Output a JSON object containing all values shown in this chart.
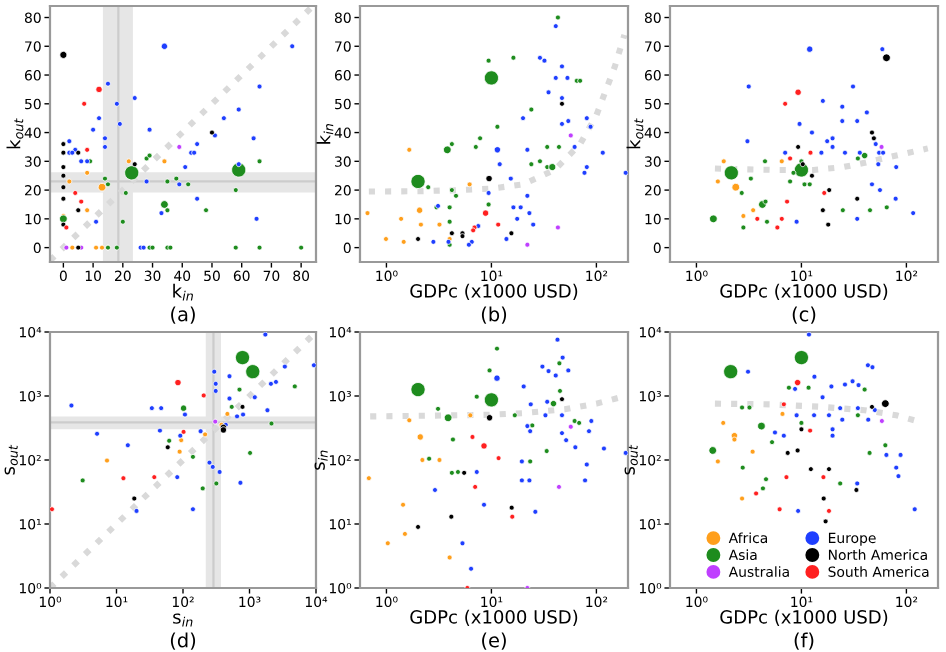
{
  "chart_data": [
    {
      "type": "bubble",
      "title": "(a)",
      "xlabel": "k$_{in}$",
      "ylabel": "k$_{out}$",
      "xlim": [
        -4.5,
        85
      ],
      "ylim": [
        -5,
        84
      ],
      "xticks": [
        0,
        10,
        20,
        30,
        40,
        50,
        60,
        70,
        80
      ],
      "yticks": [
        0,
        10,
        20,
        30,
        40,
        50,
        60,
        70,
        80
      ],
      "bands": [
        {
          "axis": "x",
          "from": 13.3,
          "to": 23.4,
          "color": "#e6e6e6"
        },
        {
          "axis": "y",
          "from": 19.2,
          "to": 26.2,
          "color": "#e6e6e6"
        }
      ],
      "ref_lines": [
        {
          "axis": "x",
          "value": 18.5,
          "color": "#cccccc"
        },
        {
          "axis": "y",
          "value": 23,
          "color": "#cccccc"
        }
      ],
      "series": [
        {
          "type": "line",
          "color": "#d9d9d9",
          "line_style": "dotted",
          "x": [
            -4.5,
            84
          ],
          "values": [
            -4.5,
            84
          ]
        },
        {
          "color": "#ff9f1c",
          "x": [
            0,
            2,
            8,
            8,
            13,
            22,
            34,
            3,
            11,
            13,
            15
          ],
          "values": [
            11,
            23,
            26,
            13,
            21,
            30,
            30,
            0,
            0,
            0,
            0
          ],
          "sizes": [
            0.12,
            0.12,
            0.12,
            0.12,
            0.3,
            0.12,
            0.12,
            0.12,
            0.12,
            0.12,
            0.12
          ]
        },
        {
          "color": "#1e8c1e",
          "x": [
            23,
            59,
            34,
            0,
            28,
            29,
            14,
            15,
            21,
            35,
            38,
            42,
            35,
            20,
            48,
            58,
            66,
            9,
            15,
            18,
            29,
            30,
            35,
            36,
            58,
            66,
            80
          ],
          "values": [
            26,
            27,
            15,
            10,
            31,
            32,
            24,
            22,
            19,
            23,
            24,
            22,
            13,
            9,
            13,
            20,
            30,
            30,
            0,
            0,
            0,
            0,
            0,
            0,
            0,
            0,
            0
          ],
          "sizes": [
            1,
            1,
            0.3,
            0.3,
            0.12,
            0.12,
            0.12,
            0.12,
            0.12,
            0.12,
            0.12,
            0.12,
            0.12,
            0.12,
            0.12,
            0.12,
            0.12,
            0.12,
            0.12,
            0.12,
            0.12,
            0.12,
            0.12,
            0.12,
            0.12,
            0.12,
            0.12
          ]
        },
        {
          "color": "#bf3fff",
          "x": [
            1,
            6,
            39
          ],
          "values": [
            0,
            0,
            35
          ],
          "sizes": [
            0.12,
            0.12,
            0.12
          ]
        },
        {
          "color": "#1f3fff",
          "x": [
            34,
            77,
            15,
            66,
            18,
            24,
            59,
            54,
            12,
            19,
            29,
            51,
            10,
            64,
            14,
            2,
            14,
            45,
            4,
            2,
            3,
            43,
            44,
            6,
            8,
            41,
            59,
            28,
            39,
            45,
            33,
            11,
            65,
            26,
            27
          ],
          "values": [
            70,
            70,
            57,
            56,
            50,
            52,
            48,
            45,
            45,
            43,
            41,
            39,
            41,
            38,
            38,
            37,
            35,
            36,
            34,
            33,
            33,
            33,
            33,
            30,
            30,
            28,
            29,
            23,
            22,
            17,
            12,
            9,
            10,
            0,
            0
          ],
          "sizes": [
            0.2,
            0.12,
            0.12,
            0.12,
            0.12,
            0.12,
            0.12,
            0.12,
            0.12,
            0.12,
            0.12,
            0.12,
            0.12,
            0.12,
            0.12,
            0.12,
            0.12,
            0.12,
            0.12,
            0.12,
            0.12,
            0.12,
            0.12,
            0.12,
            0.12,
            0.12,
            0.12,
            0.12,
            0.12,
            0.12,
            0.12,
            0.12,
            0.12,
            0.12,
            0.12
          ]
        },
        {
          "color": "#000000",
          "x": [
            0,
            0,
            0,
            0,
            0,
            0,
            0,
            0,
            5,
            5,
            24,
            50,
            5
          ],
          "values": [
            67,
            36,
            33,
            28,
            25,
            21,
            17,
            8,
            33,
            13,
            29,
            40,
            0
          ],
          "sizes": [
            0.25,
            0.12,
            0.12,
            0.12,
            0.12,
            0.12,
            0.12,
            0.12,
            0.12,
            0.12,
            0.12,
            0.12,
            0.12
          ]
        },
        {
          "color": "#ff2020",
          "x": [
            12,
            7,
            8,
            4,
            6,
            1
          ],
          "values": [
            55,
            50,
            34,
            19,
            16,
            7
          ],
          "sizes": [
            0.2,
            0.12,
            0.12,
            0.12,
            0.12,
            0.12
          ]
        }
      ]
    },
    {
      "type": "bubble",
      "title": "(b)",
      "xlabel": "GDPc (x1000 USD)",
      "ylabel": "k$_{in}$",
      "log": "x",
      "xlim": [
        0.56,
        200
      ],
      "ylim": [
        -5,
        84
      ],
      "xticks": [
        {
          "value": 1,
          "label": "10⁰"
        },
        {
          "value": 10,
          "label": "10¹"
        },
        {
          "value": 100,
          "label": "10²"
        }
      ],
      "yticks": [
        0,
        10,
        20,
        30,
        40,
        50,
        60,
        70,
        80
      ],
      "series": [
        {
          "type": "line",
          "color": "#d9d9d9",
          "line_style": "dotted",
          "x": [
            0.68,
            2,
            5,
            10,
            20,
            40,
            70,
            100,
            150,
            185
          ],
          "values": [
            19.5,
            19.6,
            20,
            20.5,
            22,
            27,
            36,
            46,
            63,
            74
          ]
        },
        {
          "color": "#ff9f1c",
          "x": [
            0.66,
            0.99,
            1.38,
            1.46,
            1.65,
            2.07,
            2.13,
            3.2,
            4,
            6.2
          ],
          "values": [
            12,
            3,
            10,
            2,
            34,
            13,
            8,
            8,
            3,
            22
          ],
          "sizes": [
            0.12,
            0.12,
            0.12,
            0.12,
            0.12,
            0.2,
            0.12,
            0.12,
            0.12,
            0.12
          ]
        },
        {
          "color": "#1e8c1e",
          "x": [
            2,
            10,
            3.8,
            43,
            9.4,
            16.2,
            65,
            70,
            11.4,
            7.8,
            7.1,
            4.2,
            2.5,
            4.2,
            4.6,
            24,
            34,
            24,
            29,
            34,
            38,
            9.4,
            3,
            4,
            4,
            4,
            44
          ],
          "values": [
            23,
            59,
            34,
            80,
            65,
            66,
            58,
            58,
            42,
            38,
            35,
            36,
            21,
            20,
            18,
            29,
            35,
            48,
            30,
            28,
            28,
            15,
            14,
            14,
            9,
            1,
            35
          ],
          "sizes": [
            1,
            1,
            0.3,
            0.12,
            0.12,
            0.12,
            0.12,
            0.12,
            0.12,
            0.12,
            0.12,
            0.12,
            0.12,
            0.12,
            0.12,
            0.12,
            0.12,
            0.12,
            0.12,
            0.12,
            0.25,
            0.12,
            0.12,
            0.12,
            0.12,
            0.12,
            0.12
          ]
        },
        {
          "color": "#bf3fff",
          "x": [
            57,
            43,
            22
          ],
          "values": [
            39,
            7,
            1
          ],
          "sizes": [
            0.12,
            0.12,
            0.12
          ]
        },
        {
          "color": "#1f3fff",
          "x": [
            41,
            29,
            32,
            47,
            41,
            53,
            47,
            35,
            20,
            47,
            54,
            81,
            88,
            115,
            190,
            81,
            77,
            62,
            11.4,
            22,
            12,
            15.3,
            9.4,
            22,
            16.2,
            19,
            23,
            17.6,
            25,
            3.1,
            7.5,
            6.5,
            6.1,
            3.9,
            2.8,
            13.9
          ],
          "values": [
            77,
            66,
            65,
            63,
            59,
            59,
            52,
            54,
            45,
            43,
            44,
            45,
            42,
            33,
            26,
            28,
            26,
            35,
            34,
            34,
            29,
            24,
            19,
            18,
            14,
            14,
            12,
            10,
            8,
            14.5,
            7.5,
            2,
            1,
            2,
            2,
            3
          ],
          "sizes": [
            0.12,
            0.12,
            0.12,
            0.12,
            0.12,
            0.12,
            0.12,
            0.12,
            0.12,
            0.12,
            0.12,
            0.12,
            0.12,
            0.12,
            0.12,
            0.12,
            0.12,
            0.12,
            0.2,
            0.12,
            0.12,
            0.12,
            0.12,
            0.12,
            0.12,
            0.12,
            0.12,
            0.12,
            0.12,
            0.12,
            0.12,
            0.12,
            0.12,
            0.12,
            0.12,
            0.12
          ]
        },
        {
          "color": "#000000",
          "x": [
            47,
            9.5,
            2,
            4.2,
            5.3,
            5.3,
            15.5
          ],
          "values": [
            50,
            24,
            3,
            5,
            5,
            4,
            5
          ],
          "sizes": [
            0.12,
            0.2,
            0.12,
            0.12,
            0.12,
            0.12,
            0.12
          ]
        },
        {
          "color": "#ff2020",
          "x": [
            8.8,
            6.9,
            6.7,
            11.6
          ],
          "values": [
            12,
            7,
            6,
            8
          ],
          "sizes": [
            0.2,
            0.12,
            0.12,
            0.12
          ]
        }
      ]
    },
    {
      "type": "bubble",
      "title": "(c)",
      "xlabel": "GDPc (x1000 USD)",
      "ylabel": "k$_{out}$",
      "log": "x",
      "xlim": [
        0.56,
        200
      ],
      "ylim": [
        -5,
        84
      ],
      "xticks": [
        {
          "value": 1,
          "label": "10⁰"
        },
        {
          "value": 10,
          "label": "10¹"
        },
        {
          "value": 100,
          "label": "10²"
        }
      ],
      "yticks": [
        0,
        10,
        20,
        30,
        40,
        50,
        60,
        70,
        80
      ],
      "series": [
        {
          "type": "line",
          "color": "#d9d9d9",
          "line_style": "dotted",
          "x": [
            1.5,
            3,
            6,
            13,
            25,
            40,
            80,
            160
          ],
          "values": [
            27.5,
            27.2,
            27,
            27,
            28,
            29.5,
            32,
            34.5
          ]
        },
        {
          "color": "#ff9f1c",
          "x": [
            1.82,
            1.6,
            2.37,
            3.47,
            2.8,
            6.5
          ],
          "values": [
            30,
            23,
            21,
            13,
            11,
            30
          ],
          "sizes": [
            0.12,
            0.12,
            0.3,
            0.12,
            0.12,
            0.12
          ]
        },
        {
          "color": "#1e8c1e",
          "x": [
            2.15,
            10,
            4.25,
            1.45,
            3.3,
            2.7,
            4.55,
            4.5,
            7.8,
            8.4,
            10.7,
            12,
            10,
            24.8,
            34.5,
            40,
            45,
            65,
            2.8,
            4.7
          ],
          "values": [
            26,
            27,
            15,
            10,
            24,
            19,
            16,
            30,
            23,
            26,
            22,
            22,
            30,
            13,
            31,
            32,
            13,
            14,
            7,
            9
          ],
          "sizes": [
            1,
            1,
            0.3,
            0.3,
            0.12,
            0.12,
            0.12,
            0.12,
            0.12,
            0.12,
            0.12,
            0.12,
            0.12,
            0.12,
            0.12,
            0.2,
            0.12,
            0.12,
            0.12,
            0.12
          ]
        },
        {
          "color": "#bf3fff",
          "x": [
            58
          ],
          "values": [
            35
          ],
          "sizes": [
            0.12
          ]
        },
        {
          "color": "#1f3fff",
          "x": [
            12,
            59,
            3.15,
            31,
            16,
            24.5,
            42,
            24.5,
            34,
            49,
            51,
            3.06,
            7,
            15.5,
            19.8,
            19.8,
            12.6,
            9.6,
            17.6,
            26,
            36,
            55,
            60,
            54,
            80,
            47,
            56,
            79,
            116,
            34,
            9
          ],
          "values": [
            69,
            69,
            56,
            56,
            51,
            49,
            47,
            44,
            44,
            38,
            36,
            37,
            33,
            33,
            35,
            38,
            40,
            43,
            37,
            33,
            33,
            33,
            33,
            29,
            28,
            22,
            20,
            17,
            12,
            10,
            9
          ],
          "sizes": [
            0.2,
            0.12,
            0.12,
            0.12,
            0.12,
            0.12,
            0.12,
            0.12,
            0.12,
            0.12,
            0.12,
            0.12,
            0.12,
            0.12,
            0.12,
            0.12,
            0.12,
            0.12,
            0.12,
            0.12,
            0.12,
            0.12,
            0.12,
            0.12,
            0.12,
            0.12,
            0.12,
            0.12,
            0.12,
            0.12,
            0.12
          ]
        },
        {
          "color": "#000000",
          "x": [
            64.6,
            47,
            49,
            9.3,
            10.3,
            12.6,
            18.4,
            16,
            18,
            34
          ],
          "values": [
            66,
            40,
            38,
            35,
            29,
            25,
            20,
            13,
            8,
            17
          ],
          "sizes": [
            0.3,
            0.12,
            0.12,
            0.12,
            0.12,
            0.12,
            0.12,
            0.12,
            0.12,
            0.12
          ]
        },
        {
          "color": "#ff2020",
          "x": [
            9.3,
            7,
            7.8,
            12.2,
            16.5,
            7.3,
            6.5,
            5.9,
            3.8
          ],
          "values": [
            54,
            50,
            31,
            33,
            19,
            16,
            10,
            7,
            10
          ],
          "sizes": [
            0.2,
            0.12,
            0.12,
            0.12,
            0.12,
            0.12,
            0.12,
            0.12,
            0.12
          ]
        }
      ]
    },
    {
      "type": "bubble",
      "title": "(d)",
      "xlabel": "s$_{in}$",
      "ylabel": "s$_{out}$",
      "log": "xy",
      "xlim": [
        1,
        10000
      ],
      "ylim": [
        1,
        10000
      ],
      "xticks": [
        {
          "value": 1,
          "label": "10⁰"
        },
        {
          "value": 10,
          "label": "10¹"
        },
        {
          "value": 100,
          "label": "10²"
        },
        {
          "value": 1000,
          "label": "10³"
        },
        {
          "value": 10000,
          "label": "10⁴"
        }
      ],
      "yticks": [
        {
          "value": 1,
          "label": "10⁰"
        },
        {
          "value": 10,
          "label": "10¹"
        },
        {
          "value": 100,
          "label": "10²"
        },
        {
          "value": 1000,
          "label": "10³"
        },
        {
          "value": 10000,
          "label": "10⁴"
        }
      ],
      "bands": [
        {
          "axis": "x",
          "from": 220,
          "to": 373,
          "color": "#e6e6e6"
        },
        {
          "axis": "y",
          "from": 302,
          "to": 478,
          "color": "#e6e6e6"
        }
      ],
      "ref_lines": [
        {
          "axis": "x",
          "value": 287,
          "color": "#cccccc"
        },
        {
          "axis": "y",
          "value": 388,
          "color": "#cccccc"
        }
      ],
      "series": [
        {
          "type": "line",
          "color": "#d9d9d9",
          "line_style": "dotted",
          "x": [
            1,
            10000
          ],
          "values": [
            1,
            10000
          ]
        },
        {
          "color": "#ff9f1c",
          "x": [
            94,
            89,
            7.2,
            215,
            465,
            380
          ],
          "values": [
            204,
            135,
            98,
            251,
            525,
            355
          ],
          "sizes": [
            0.12,
            0.12,
            0.12,
            0.12,
            0.12,
            0.12
          ]
        },
        {
          "color": "#1e8c1e",
          "x": [
            785,
            1120,
            102,
            707,
            540,
            4800,
            2140,
            1020,
            141,
            317,
            198,
            62,
            3.1
          ],
          "values": [
            3981,
            2400,
            646,
            1259,
            676,
            1413,
            372,
            129,
            112,
            43,
            36,
            200,
            48
          ],
          "sizes": [
            1,
            1,
            0.2,
            0.12,
            0.12,
            0.12,
            0.12,
            0.12,
            0.12,
            0.12,
            0.12,
            0.12,
            0.12
          ]
        },
        {
          "color": "#bf3fff",
          "x": [
            305
          ],
          "values": [
            398
          ],
          "sizes": [
            0.12
          ]
        },
        {
          "color": "#1f3fff",
          "x": [
            1730,
            500,
            295,
            310,
            310,
            500,
            3400,
            9300,
            2500,
            2100,
            1200,
            1860,
            800,
            650,
            2.1,
            34,
            47,
            107,
            45,
            5.1,
            14.8,
            91,
            184,
            250,
            280,
            355,
            82,
            141,
            20,
            730,
            440
          ],
          "values": [
            9120,
            2040,
            2400,
            1550,
            1200,
            912,
            2880,
            3020,
            1660,
            1550,
            955,
            600,
            513,
            480,
            710,
            646,
            646,
            513,
            288,
            257,
            170,
            240,
            282,
            91,
            78,
            65,
            54,
            17,
            16,
            44,
            355
          ],
          "sizes": [
            0.12,
            0.12,
            0.12,
            0.12,
            0.12,
            0.12,
            0.12,
            0.12,
            0.12,
            0.12,
            0.12,
            0.12,
            0.12,
            0.12,
            0.12,
            0.12,
            0.12,
            0.12,
            0.12,
            0.12,
            0.12,
            0.12,
            0.12,
            0.12,
            0.12,
            0.12,
            0.12,
            0.12,
            0.12,
            0.12,
            0.12
          ]
        },
        {
          "color": "#000000",
          "x": [
            785,
            405,
            405,
            59,
            18.5
          ],
          "values": [
            676,
            324,
            295,
            158,
            25
          ],
          "sizes": [
            0.12,
            0.2,
            0.2,
            0.12,
            0.12
          ]
        },
        {
          "color": "#ff2020",
          "x": [
            84,
            205,
            102,
            12.7,
            37,
            1.07
          ],
          "values": [
            1620,
            1020,
            275,
            52,
            54,
            17
          ],
          "sizes": [
            0.2,
            0.12,
            0.12,
            0.12,
            0.12,
            0.12
          ]
        }
      ]
    },
    {
      "type": "bubble",
      "title": "(e)",
      "xlabel": "GDPc (x1000 USD)",
      "ylabel": "s$_{in}$",
      "log": "xy",
      "xlim": [
        0.56,
        200
      ],
      "ylim": [
        1,
        10000
      ],
      "xticks": [
        {
          "value": 1,
          "label": "10⁰"
        },
        {
          "value": 10,
          "label": "10¹"
        },
        {
          "value": 100,
          "label": "10²"
        }
      ],
      "yticks": [
        {
          "value": 1,
          "label": "10⁰"
        },
        {
          "value": 10,
          "label": "10¹"
        },
        {
          "value": 100,
          "label": "10²"
        },
        {
          "value": 1000,
          "label": "10³"
        },
        {
          "value": 10000,
          "label": "10⁴"
        }
      ],
      "series": [
        {
          "type": "line",
          "color": "#d9d9d9",
          "line_style": "dotted",
          "x": [
            0.7,
            2,
            5,
            10,
            20,
            50,
            100,
            190
          ],
          "values": [
            480,
            490,
            500,
            510,
            540,
            620,
            760,
            1000
          ]
        },
        {
          "color": "#ff9f1c",
          "x": [
            0.68,
            1.65,
            2.1,
            2.2,
            3.2,
            6.3,
            1.44,
            1.5,
            1.03,
            4
          ],
          "values": [
            52,
            417,
            229,
            100,
            100,
            500,
            20,
            7,
            5,
            3
          ],
          "sizes": [
            0.12,
            0.12,
            0.2,
            0.12,
            0.12,
            0.12,
            0.12,
            0.12,
            0.12,
            0.12
          ]
        },
        {
          "color": "#1e8c1e",
          "x": [
            2,
            10,
            3.87,
            3.1,
            4.3,
            2.55,
            4.2,
            4.8,
            9.6,
            11.3,
            7.25,
            16.7,
            24.5,
            23.4,
            33.6,
            39,
            44.4,
            45,
            62,
            68.5
          ],
          "values": [
            1260,
            870,
            457,
            630,
            209,
            105,
            63,
            65,
            2510,
            5500,
            977,
            500,
            347,
            95,
            138,
            760,
            3240,
            1200,
            407,
            380
          ],
          "sizes": [
            1,
            1,
            0.3,
            0.12,
            0.12,
            0.12,
            0.12,
            0.12,
            0.12,
            0.12,
            0.12,
            0.12,
            0.12,
            0.12,
            0.12,
            0.2,
            0.12,
            0.12,
            0.12,
            0.12
          ]
        },
        {
          "color": "#bf3fff",
          "x": [
            57,
            44,
            22
          ],
          "values": [
            331,
            38,
            1
          ],
          "sizes": [
            0.12,
            0.12,
            0.12
          ]
        },
        {
          "color": "#1f3fff",
          "x": [
            42.6,
            47.7,
            30.6,
            35,
            54,
            41,
            11.3,
            20.3,
            23.7,
            34,
            32.7,
            47,
            22,
            23.4,
            47,
            51.5,
            89.5,
            85,
            63,
            118,
            190,
            81,
            19.5,
            23,
            19.5,
            7.25,
            2.9,
            8.5,
            26.2,
            5.3,
            6.4,
            78
          ],
          "values": [
            7590,
            3980,
            2880,
            2450,
            2510,
            2090,
            1900,
            1410,
            741,
            813,
            500,
            500,
            339,
            282,
            263,
            204,
            407,
            282,
            158,
            151,
            129,
            85,
            95,
            48,
            48,
            65,
            34,
            20,
            15.5,
            5,
            2,
            48
          ],
          "sizes": [
            0.12,
            0.12,
            0.12,
            0.12,
            0.12,
            0.12,
            0.2,
            0.12,
            0.12,
            0.12,
            0.12,
            0.12,
            0.12,
            0.12,
            0.12,
            0.12,
            0.12,
            0.12,
            0.12,
            0.12,
            0.12,
            0.12,
            0.12,
            0.12,
            0.12,
            0.12,
            0.12,
            0.12,
            0.12,
            0.12,
            0.12,
            0.12
          ]
        },
        {
          "color": "#000000",
          "x": [
            9.6,
            47,
            5.5,
            4.15,
            2,
            15.6
          ],
          "values": [
            457,
            891,
            63,
            13,
            9,
            18
          ],
          "sizes": [
            0.2,
            0.12,
            0.12,
            0.12,
            0.12,
            0.12
          ]
        },
        {
          "color": "#ff2020",
          "x": [
            6.6,
            8.5,
            11.7,
            7,
            15.8,
            5.9
          ],
          "values": [
            229,
            166,
            107,
            38,
            13,
            1
          ],
          "sizes": [
            0.12,
            0.2,
            0.12,
            0.12,
            0.12,
            0.12
          ]
        }
      ]
    },
    {
      "type": "bubble",
      "title": "(f)",
      "xlabel": "GDPc (x1000 USD)",
      "ylabel": "s$_{out}$",
      "log": "xy",
      "legend": "bottom right",
      "xlim": [
        0.56,
        200
      ],
      "ylim": [
        1,
        10000
      ],
      "xticks": [
        {
          "value": 1,
          "label": "10⁰"
        },
        {
          "value": 10,
          "label": "10¹"
        },
        {
          "value": 100,
          "label": "10²"
        }
      ],
      "yticks": [
        {
          "value": 1,
          "label": "10⁰"
        },
        {
          "value": 10,
          "label": "10¹"
        },
        {
          "value": 100,
          "label": "10²"
        },
        {
          "value": 1000,
          "label": "10³"
        },
        {
          "value": 10000,
          "label": "10⁴"
        }
      ],
      "series": [
        {
          "type": "line",
          "color": "#d9d9d9",
          "line_style": "dotted",
          "x": [
            1.5,
            5,
            15,
            40,
            80,
            130
          ],
          "values": [
            760,
            740,
            680,
            600,
            500,
            400
          ]
        },
        {
          "name": "Africa",
          "color": "#ff9f1c",
          "x": [
            1.8,
            2.3,
            2.3,
            3.43,
            1.6,
            2.72,
            6.6
          ],
          "values": [
            380,
            240,
            209,
            135,
            95,
            25,
            525
          ],
          "sizes": [
            0.12,
            0.2,
            0.12,
            0.12,
            0.12,
            0.12,
            0.12
          ]
        },
        {
          "name": "Asia",
          "color": "#1e8c1e",
          "x": [
            2.12,
            10,
            4.16,
            1.43,
            2.72,
            3.2,
            7.6,
            11.7,
            10,
            40,
            34.5,
            63,
            44.6,
            23.4,
            4.6,
            4.3,
            5.25,
            2.76
          ],
          "values": [
            2400,
            3980,
            339,
            141,
            661,
            661,
            1350,
            1350,
            380,
            1260,
            500,
            170,
            129,
            43,
            50,
            36,
            190,
            76
          ],
          "sizes": [
            1,
            1,
            0.3,
            0.3,
            0.12,
            0.12,
            0.12,
            0.12,
            0.12,
            0.12,
            0.12,
            0.12,
            0.12,
            0.12,
            0.12,
            0.12,
            0.12,
            0.12
          ]
        },
        {
          "name": "Australia",
          "color": "#bf3fff",
          "x": [
            58.4
          ],
          "values": [
            407
          ],
          "sizes": [
            0.12
          ]
        },
        {
          "name": "Europe",
          "color": "#1f3fff",
          "x": [
            11.8,
            3.1,
            43,
            47.5,
            30.7,
            26,
            35,
            19.3,
            13.3,
            15.9,
            23.4,
            34.5,
            18.3,
            13.2,
            9,
            24.5,
            50,
            43.3,
            19.8,
            19.8,
            6.8,
            64.5,
            88,
            80,
            84,
            34,
            9.3,
            120,
            5.6,
            8.7
          ],
          "values": [
            9120,
            2400,
            3020,
            2820,
            1700,
            1510,
            1480,
            1410,
            2000,
            955,
            646,
            646,
            500,
            500,
            500,
            427,
            603,
            427,
            302,
            240,
            240,
            120,
            120,
            76,
            56,
            43,
            16,
            17,
            269,
            1290
          ],
          "sizes": [
            0.12,
            0.12,
            0.12,
            0.12,
            0.12,
            0.12,
            0.12,
            0.12,
            0.12,
            0.12,
            0.12,
            0.12,
            0.12,
            0.12,
            0.12,
            0.12,
            0.12,
            0.12,
            0.12,
            0.12,
            0.12,
            0.12,
            0.12,
            0.12,
            0.12,
            0.12,
            0.12,
            0.12,
            0.12,
            0.12
          ]
        },
        {
          "name": "North America",
          "color": "#000000",
          "x": [
            63,
            47,
            10,
            9.2,
            7.4,
            12.3,
            18.3,
            16.3,
            17,
            33.4
          ],
          "values": [
            760,
            676,
            302,
            141,
            129,
            72,
            72,
            25,
            11,
            34
          ],
          "sizes": [
            0.3,
            0.12,
            0.12,
            0.12,
            0.12,
            0.12,
            0.12,
            0.12,
            0.12,
            0.12
          ]
        },
        {
          "name": "South America",
          "color": "#ff2020",
          "x": [
            9.2,
            6.8,
            12.1,
            7.2,
            16.2,
            3.7,
            6.2,
            18.3
          ],
          "values": [
            1620,
            741,
            288,
            54,
            54,
            30,
            17,
            16
          ],
          "sizes": [
            0.2,
            0.12,
            0.12,
            0.12,
            0.12,
            0.12,
            0.12,
            0.12
          ]
        }
      ]
    }
  ]
}
